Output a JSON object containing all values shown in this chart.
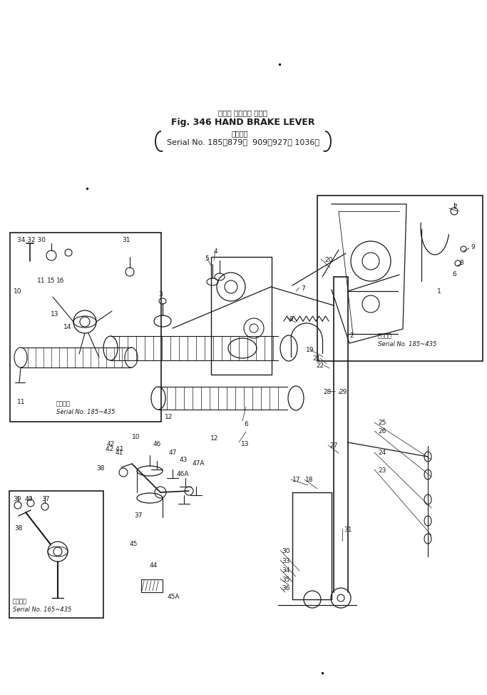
{
  "bg_color": "#ffffff",
  "line_color": "#1a1a1a",
  "fig_width": 6.83,
  "fig_height": 9.74,
  "dpi": 100,
  "title_jp": "ハンド ブレーキ レバー",
  "title_en": "Fig. 346 HAND BRAKE LEVER",
  "serial_jp": "適用号機",
  "serial_en": "Serial No. 185～879， 909～927， 1036～",
  "inset1_serial_jp": "適用号機",
  "inset1_serial_en": "Serial No. 185~435",
  "inset2_serial_jp": "適用号機",
  "inset2_serial_en": "Serial No. 185~435",
  "inset3_serial_jp": "適用号機",
  "inset3_serial_en": "Serial No. 165~435"
}
